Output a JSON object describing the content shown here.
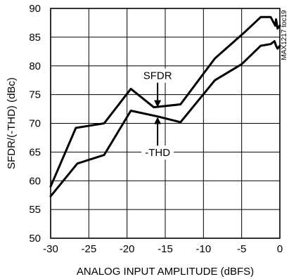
{
  "chart_data": {
    "type": "line",
    "title": "",
    "xlabel": "ANALOG INPUT AMPLITUDE (dBFS)",
    "ylabel": "SFDR/(-THD) (dBc)",
    "xlim": [
      -30,
      0
    ],
    "ylim": [
      50,
      90
    ],
    "x_ticks": [
      -30,
      -25,
      -20,
      -15,
      -10,
      -5,
      0
    ],
    "y_ticks": [
      50,
      55,
      60,
      65,
      70,
      75,
      80,
      85,
      90
    ],
    "x_tick_labels": [
      "-30",
      "-25",
      "-20",
      "-15",
      "-10",
      "-5",
      "0"
    ],
    "y_tick_labels": [
      "50",
      "55",
      "60",
      "65",
      "70",
      "75",
      "80",
      "85",
      "90"
    ],
    "grid": true,
    "series": [
      {
        "name": "SFDR",
        "x": [
          -30.0,
          -26.7,
          -23.0,
          -19.5,
          -16.5,
          -13.0,
          -8.5,
          -4.5,
          -2.5,
          -1.2,
          -0.6,
          -0.5,
          -0.3,
          0.0
        ],
        "y": [
          59.0,
          69.2,
          70.0,
          76.0,
          72.8,
          73.3,
          81.3,
          86.0,
          88.5,
          88.5,
          87.0,
          88.1,
          86.5,
          87.0
        ]
      },
      {
        "name": "-THD",
        "x": [
          -30.0,
          -26.5,
          -23.0,
          -19.5,
          -16.0,
          -13.0,
          -8.5,
          -5.0,
          -2.5,
          -1.2,
          -0.7,
          -0.5,
          -0.3,
          0.0
        ],
        "y": [
          57.3,
          63.0,
          64.5,
          72.2,
          71.2,
          70.2,
          77.5,
          80.3,
          83.5,
          83.8,
          84.3,
          83.5,
          83.0,
          83.5
        ]
      }
    ],
    "annotations": [
      {
        "text": "SFDR",
        "label_x": -16.0,
        "label_y": 78.3,
        "arrow_to_x": -16.0,
        "arrow_to_y": 72.8
      },
      {
        "text": "-THD",
        "label_x": -16.0,
        "label_y": 64.9,
        "arrow_to_x": -16.0,
        "arrow_to_y": 71.1
      }
    ],
    "side_label": "MAX1217 toc19"
  }
}
